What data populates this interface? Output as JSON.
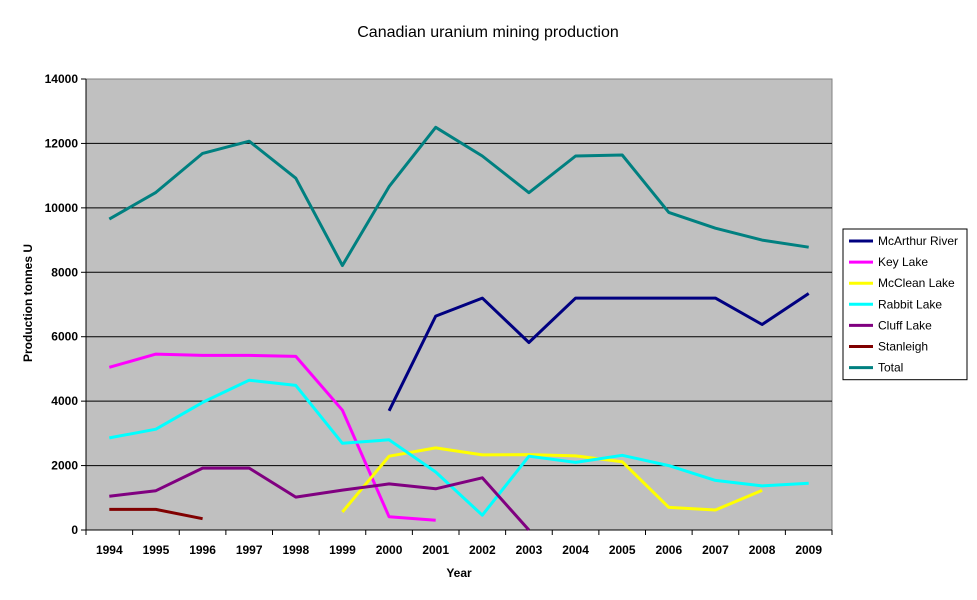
{
  "chart_data": {
    "type": "line",
    "title": "Canadian uranium mining production",
    "xlabel": "Year",
    "ylabel": "Production tonnes U",
    "ylim": [
      0,
      14000
    ],
    "yticks": [
      0,
      2000,
      4000,
      6000,
      8000,
      10000,
      12000,
      14000
    ],
    "grid": "horizontal",
    "legend_position": "right",
    "categories": [
      "1994",
      "1995",
      "1996",
      "1997",
      "1998",
      "1999",
      "2000",
      "2001",
      "2002",
      "2003",
      "2004",
      "2005",
      "2006",
      "2007",
      "2008",
      "2009"
    ],
    "series": [
      {
        "name": "McArthur River",
        "color": "#000080",
        "values": [
          null,
          null,
          null,
          null,
          null,
          null,
          3700,
          6640,
          7200,
          5820,
          7200,
          7200,
          7200,
          7200,
          6380,
          7340
        ]
      },
      {
        "name": "Key Lake",
        "color": "#ff00ff",
        "values": [
          5050,
          5460,
          5420,
          5420,
          5390,
          3720,
          410,
          300,
          null,
          null,
          null,
          null,
          null,
          null,
          null,
          null
        ]
      },
      {
        "name": "McClean Lake",
        "color": "#ffff00",
        "values": [
          null,
          null,
          null,
          null,
          null,
          560,
          2290,
          2550,
          2330,
          2340,
          2300,
          2120,
          700,
          620,
          1230,
          null
        ]
      },
      {
        "name": "Rabbit Lake",
        "color": "#00ffff",
        "values": [
          2860,
          3130,
          3960,
          4650,
          4490,
          2690,
          2800,
          1800,
          460,
          2290,
          2100,
          2320,
          2000,
          1540,
          1370,
          1450
        ]
      },
      {
        "name": "Cluff Lake",
        "color": "#800080",
        "values": [
          1050,
          1220,
          1920,
          1920,
          1020,
          1240,
          1430,
          1280,
          1620,
          0,
          null,
          null,
          null,
          null,
          null,
          null
        ]
      },
      {
        "name": "Stanleigh",
        "color": "#800000",
        "values": [
          640,
          640,
          350,
          null,
          null,
          null,
          null,
          null,
          null,
          null,
          null,
          null,
          null,
          null,
          null,
          null
        ]
      },
      {
        "name": "Total",
        "color": "#008080",
        "values": [
          9650,
          10480,
          11690,
          12070,
          10920,
          8210,
          10660,
          12500,
          11610,
          10470,
          11610,
          11640,
          9860,
          9370,
          9000,
          8780
        ]
      }
    ]
  }
}
